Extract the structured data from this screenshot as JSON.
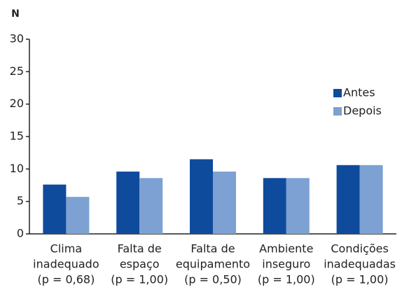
{
  "chart_data": {
    "type": "bar",
    "y_label": "N",
    "categories": [
      [
        "Clima",
        "inadequado",
        "(p = 0,68)"
      ],
      [
        "Falta de",
        "espaço",
        "(p = 1,00)"
      ],
      [
        "Falta de",
        "equipamento",
        "(p = 0,50)"
      ],
      [
        "Ambiente",
        "inseguro",
        "(p = 1,00)"
      ],
      [
        "Condições",
        "inadequadas",
        "(p = 1,00)"
      ]
    ],
    "series": [
      {
        "name": "Antes",
        "color": "#0f4b9c",
        "values": [
          7.6,
          9.6,
          11.5,
          8.6,
          10.6
        ]
      },
      {
        "name": "Depois",
        "color": "#7ca1d2",
        "values": [
          5.7,
          8.6,
          9.6,
          8.6,
          10.6
        ]
      }
    ],
    "ylim": [
      0,
      30
    ],
    "yticks": [
      0,
      5,
      10,
      15,
      20,
      25,
      30
    ],
    "grid": false,
    "legend": "right"
  }
}
